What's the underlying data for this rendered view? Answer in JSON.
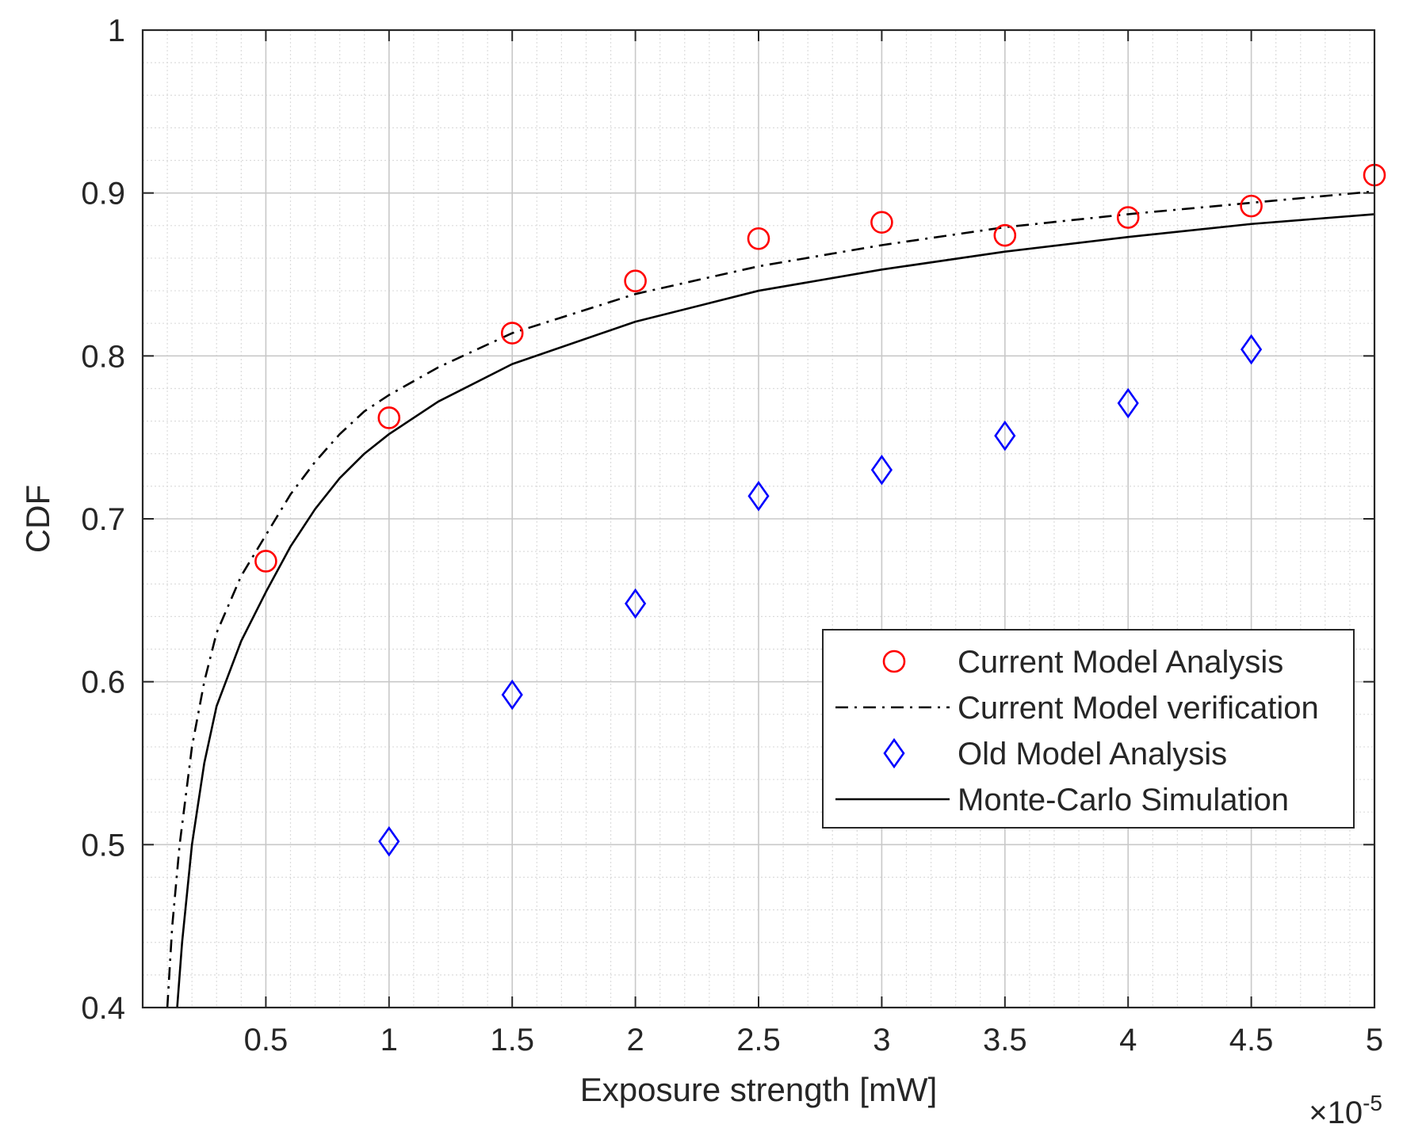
{
  "chart_data": {
    "type": "line",
    "title": "",
    "xlabel": "Exposure strength [mW]",
    "ylabel": "CDF",
    "x_exponent_label": "×10",
    "x_exponent_power": "-5",
    "xlim": [
      0,
      5
    ],
    "ylim": [
      0.4,
      1
    ],
    "x_ticks": [
      0.5,
      1,
      1.5,
      2,
      2.5,
      3,
      3.5,
      4,
      4.5,
      5
    ],
    "x_tick_labels": [
      "0.5",
      "1",
      "1.5",
      "2",
      "2.5",
      "3",
      "3.5",
      "4",
      "4.5",
      "5"
    ],
    "y_ticks": [
      0.4,
      0.5,
      0.6,
      0.7,
      0.8,
      0.9,
      1
    ],
    "y_tick_labels": [
      "0.4",
      "0.5",
      "0.6",
      "0.7",
      "0.8",
      "0.9",
      "1"
    ],
    "grid": true,
    "minor_grid": true,
    "legend_position": "center-right",
    "series": [
      {
        "name": "Current Model Analysis",
        "kind": "markers",
        "marker": "circle",
        "color": "#ff0000",
        "x": [
          0.5,
          1,
          1.5,
          2,
          2.5,
          3,
          3.5,
          4,
          4.5,
          5
        ],
        "y": [
          0.674,
          0.762,
          0.814,
          0.846,
          0.872,
          0.882,
          0.874,
          0.885,
          0.892,
          0.911
        ]
      },
      {
        "name": "Current Model verification",
        "kind": "line",
        "line_style": "dashdot",
        "color": "#000000",
        "x": [
          0.1,
          0.12,
          0.15,
          0.2,
          0.25,
          0.3,
          0.4,
          0.5,
          0.6,
          0.7,
          0.8,
          0.9,
          1,
          1.2,
          1.5,
          2,
          2.5,
          3,
          3.5,
          4,
          4.5,
          5
        ],
        "y": [
          0.4,
          0.45,
          0.5,
          0.56,
          0.6,
          0.63,
          0.665,
          0.69,
          0.715,
          0.735,
          0.752,
          0.766,
          0.776,
          0.793,
          0.814,
          0.838,
          0.855,
          0.868,
          0.879,
          0.887,
          0.894,
          0.901
        ]
      },
      {
        "name": "Old Model Analysis",
        "kind": "markers",
        "marker": "diamond",
        "color": "#0000ff",
        "x": [
          1,
          1.5,
          2,
          2.5,
          3,
          3.5,
          4,
          4.5
        ],
        "y": [
          0.502,
          0.592,
          0.648,
          0.714,
          0.73,
          0.751,
          0.771,
          0.804
        ]
      },
      {
        "name": "Monte-Carlo Simulation",
        "kind": "line",
        "line_style": "solid",
        "color": "#000000",
        "x": [
          0.14,
          0.16,
          0.2,
          0.25,
          0.3,
          0.4,
          0.5,
          0.6,
          0.7,
          0.8,
          0.9,
          1,
          1.2,
          1.5,
          2,
          2.5,
          3,
          3.5,
          4,
          4.5,
          5
        ],
        "y": [
          0.4,
          0.44,
          0.5,
          0.55,
          0.585,
          0.625,
          0.655,
          0.683,
          0.706,
          0.725,
          0.74,
          0.752,
          0.772,
          0.795,
          0.821,
          0.84,
          0.853,
          0.864,
          0.873,
          0.881,
          0.887
        ]
      }
    ]
  }
}
